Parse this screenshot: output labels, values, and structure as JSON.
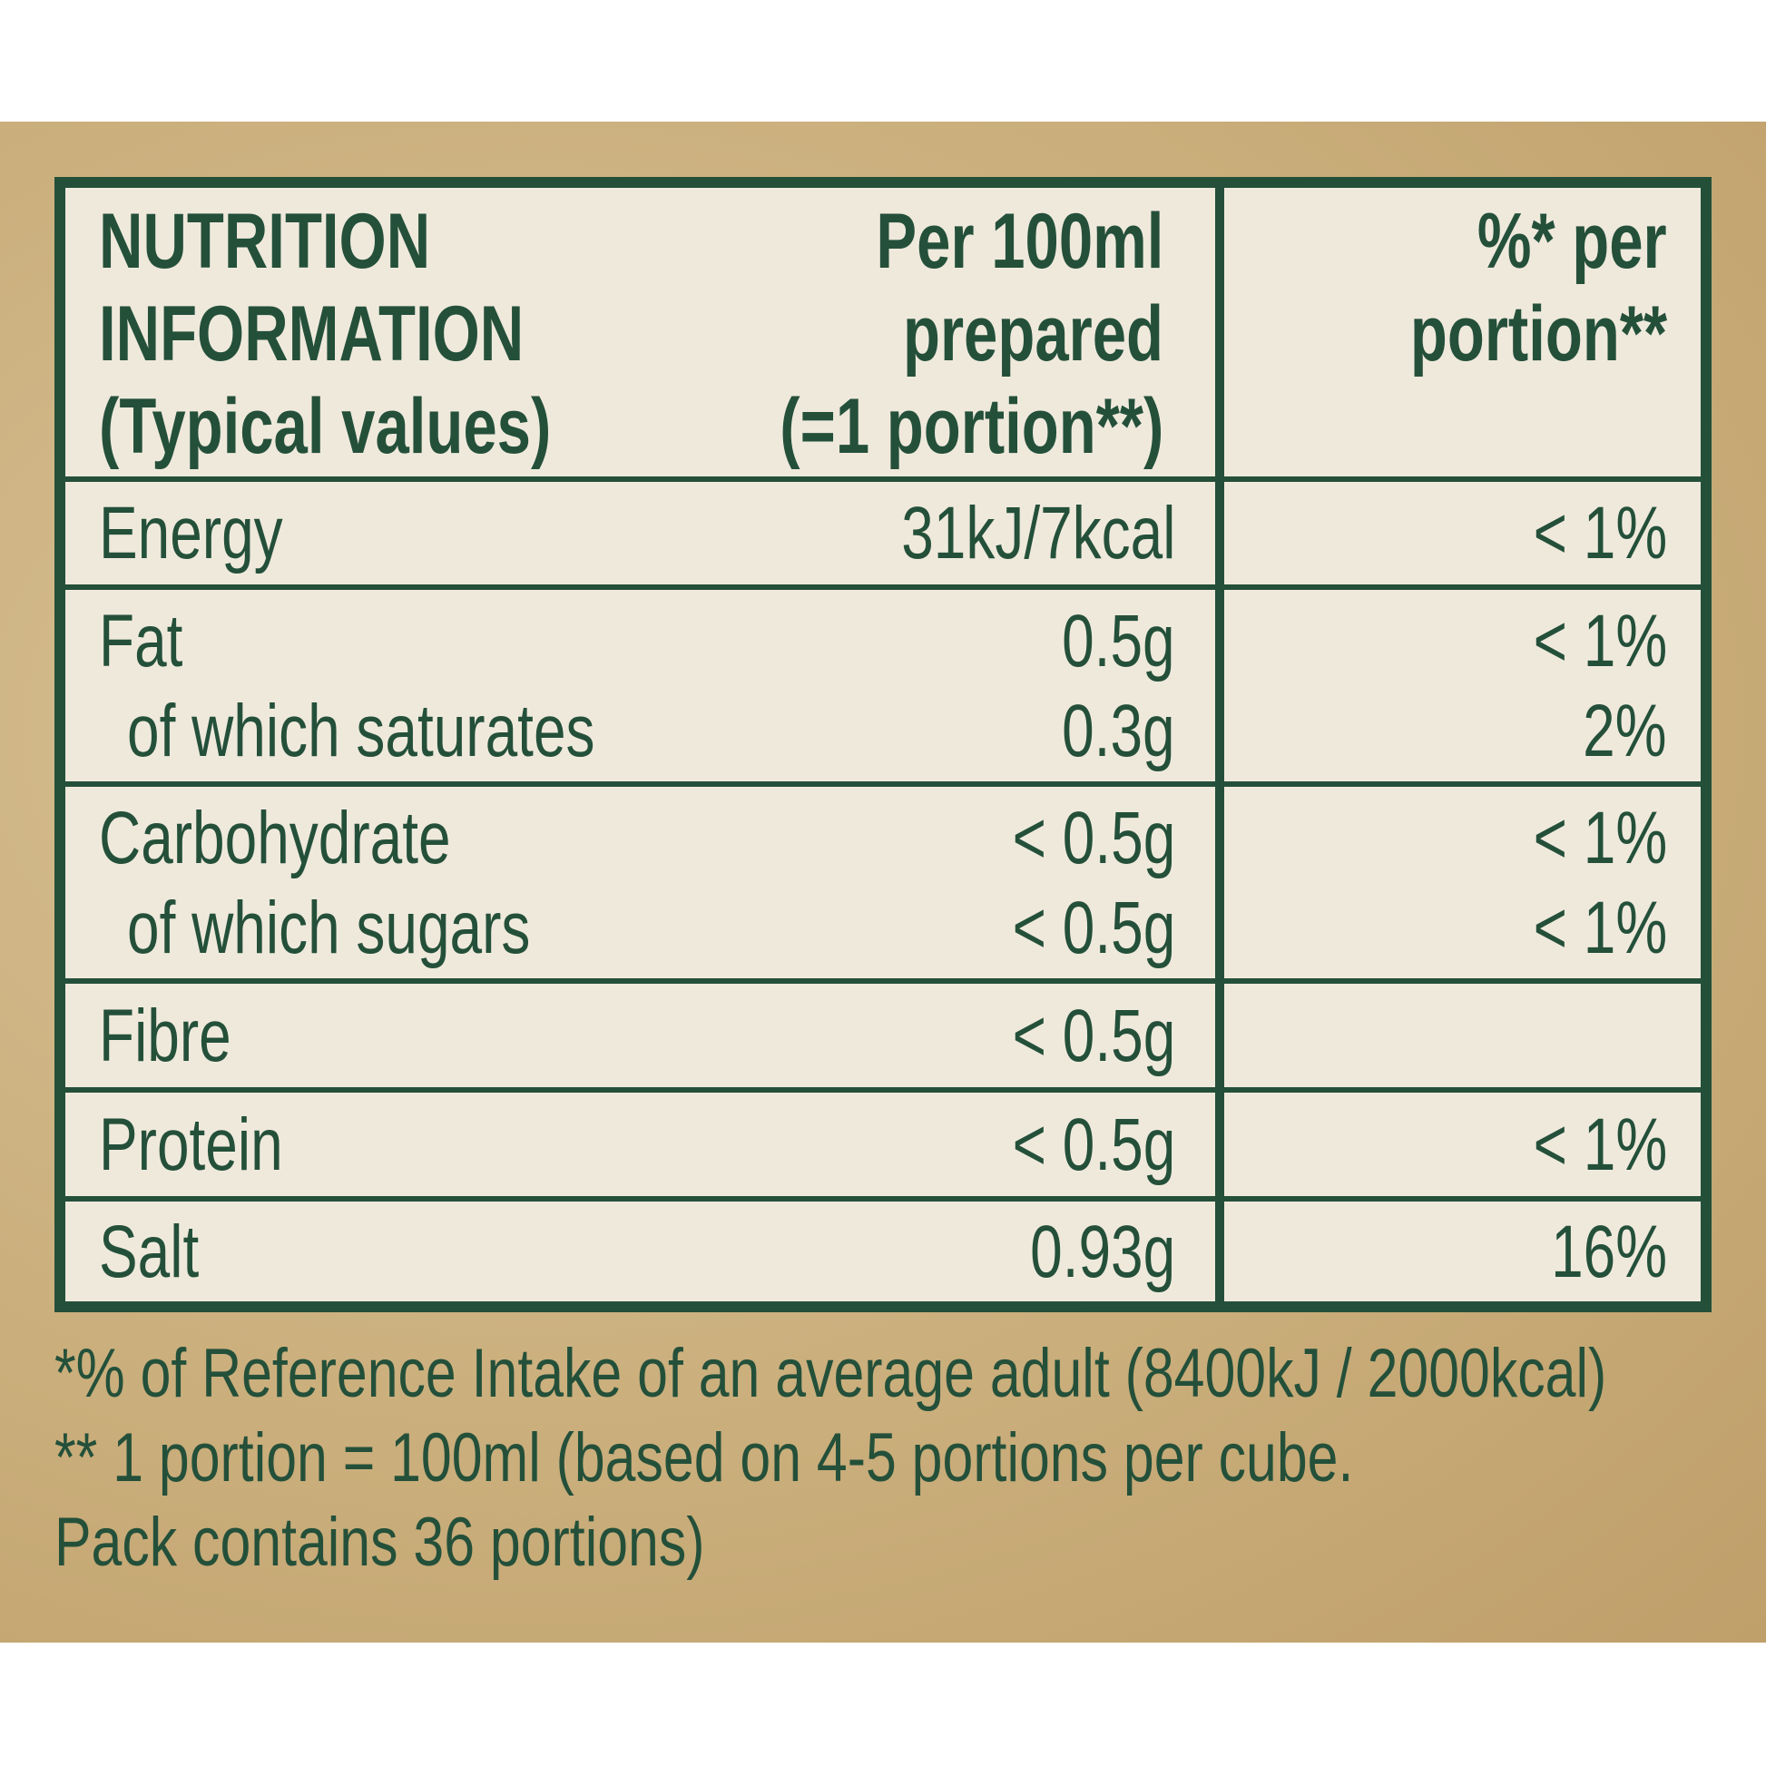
{
  "colors": {
    "text": "#24503a",
    "panel": "#efe9dc",
    "background": "#c9ad7a"
  },
  "header": {
    "col1": [
      "NUTRITION",
      "INFORMATION",
      "(Typical values)"
    ],
    "col2": [
      "Per 100ml",
      "prepared",
      "(=1 portion**)"
    ],
    "col3": [
      "%* per",
      "portion**"
    ]
  },
  "rows": [
    {
      "lines": [
        {
          "label": "Energy",
          "value": "31kJ/7kcal",
          "ri": "< 1%"
        }
      ]
    },
    {
      "lines": [
        {
          "label": "Fat",
          "value": "0.5g",
          "ri": "< 1%"
        },
        {
          "label": "of which saturates",
          "value": "0.3g",
          "ri": "2%"
        }
      ]
    },
    {
      "lines": [
        {
          "label": "Carbohydrate",
          "value": "< 0.5g",
          "ri": "< 1%"
        },
        {
          "label": "of which sugars",
          "value": "< 0.5g",
          "ri": "< 1%"
        }
      ]
    },
    {
      "lines": [
        {
          "label": "Fibre",
          "value": "< 0.5g",
          "ri": ""
        }
      ]
    },
    {
      "lines": [
        {
          "label": "Protein",
          "value": "< 0.5g",
          "ri": "< 1%"
        }
      ]
    },
    {
      "lines": [
        {
          "label": "Salt",
          "value": "0.93g",
          "ri": "16%"
        }
      ]
    }
  ],
  "footnotes": [
    "*% of Reference Intake of an average adult (8400kJ / 2000kcal)",
    "** 1 portion = 100ml (based on 4-5 portions per cube.",
    "Pack contains 36 portions)"
  ]
}
